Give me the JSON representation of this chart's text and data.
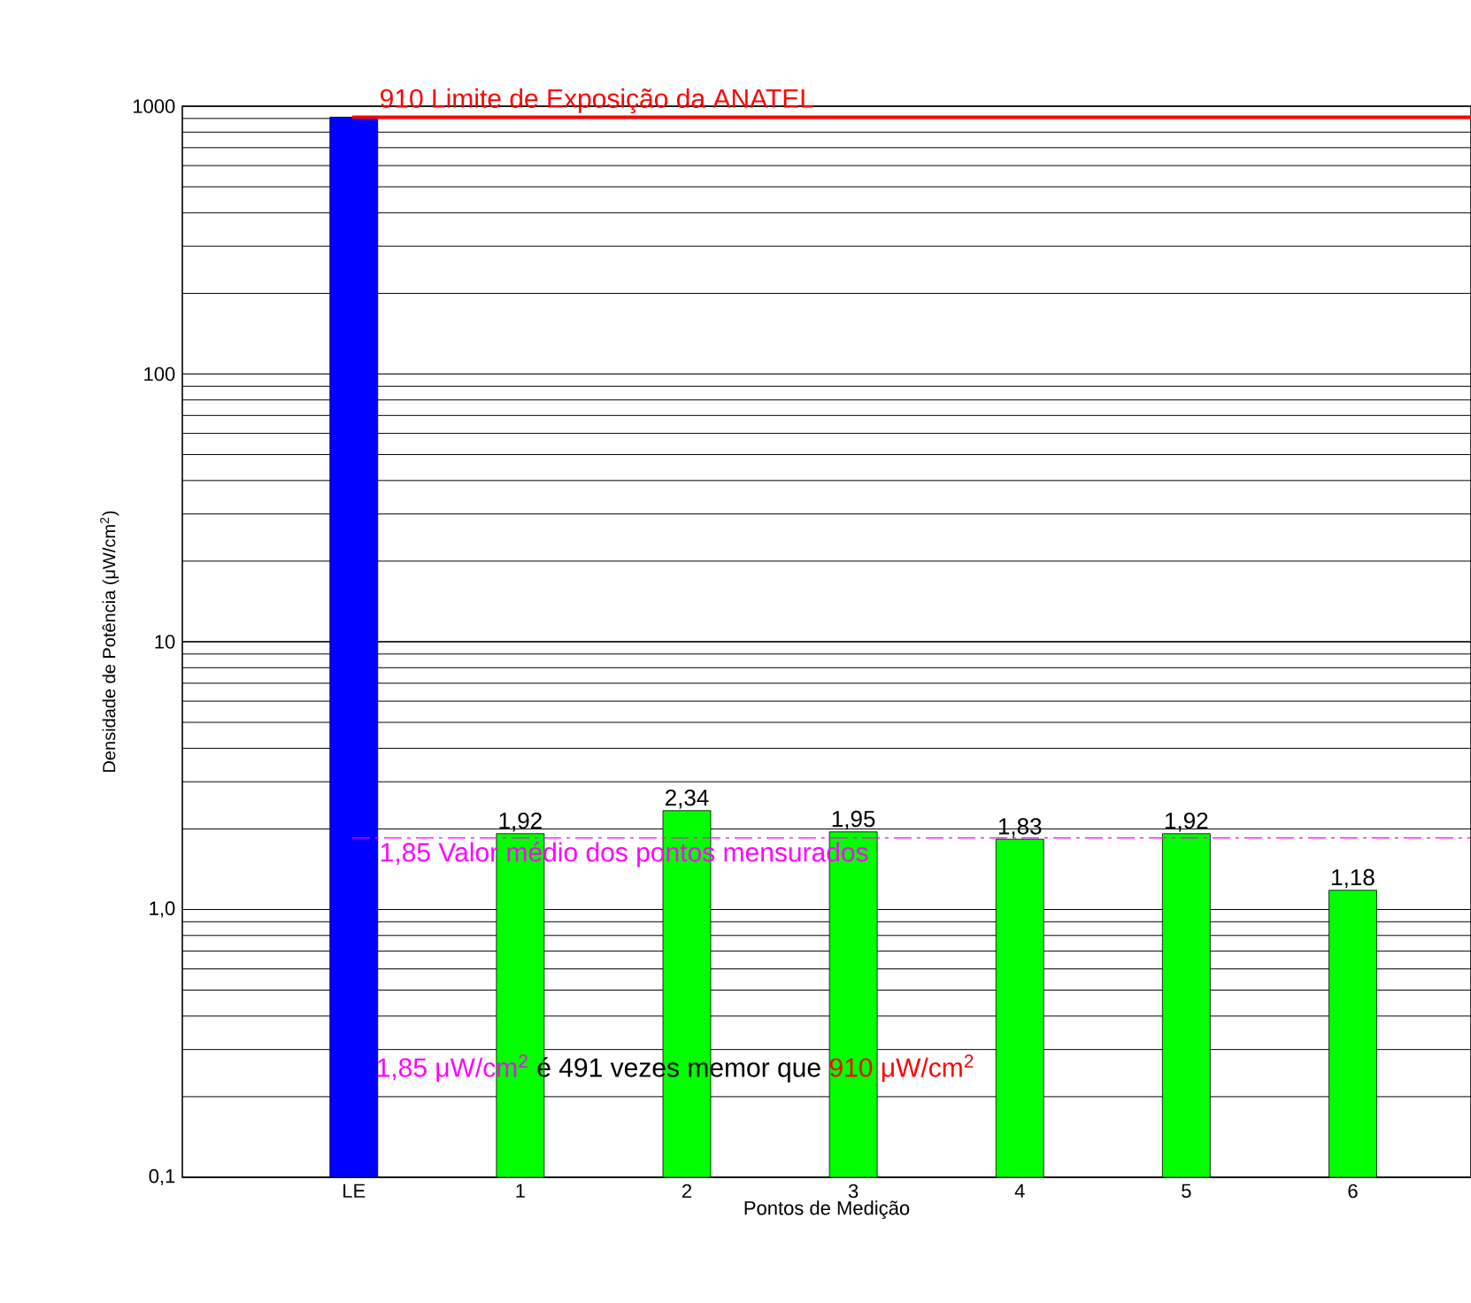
{
  "chart_data": {
    "type": "bar",
    "log": "y",
    "grid": "y",
    "categories": [
      "LE",
      "1",
      "2",
      "3",
      "4",
      "5",
      "6"
    ],
    "values": [
      910,
      1.92,
      2.34,
      1.95,
      1.83,
      1.92,
      1.18
    ],
    "colors": [
      "#0000ff",
      "#00ff00",
      "#00ff00",
      "#00ff00",
      "#00ff00",
      "#00ff00",
      "#00ff00"
    ],
    "value_labels": [
      null,
      "1,92",
      "2,34",
      "1,95",
      "1,83",
      "1,92",
      "1,18"
    ],
    "xlabel": "Pontos de Medição",
    "ylabel": "Densidade de Potência (μW/cm$^{2}$)",
    "ylim": [
      0.1,
      1000
    ],
    "yticks": [
      {
        "value": 0.1,
        "label": "0,1"
      },
      {
        "value": 1,
        "label": "1,0"
      },
      10,
      100,
      1000
    ],
    "ref_lines": [
      {
        "axis": "y",
        "value": 910,
        "label": "910 Limite de Exposição da ANATEL",
        "color": "#ff0000",
        "line_style": "solid"
      },
      {
        "axis": "y",
        "value": 1.85,
        "label": "1,85 Valor médio dos pontos mensurados",
        "color": "#ff00ff",
        "line_style": "dashed"
      }
    ],
    "annotations": [
      "1,85 μW/cm$^{2}$",
      "é 491 vezes memor que",
      "910 μW/cm$^{2}$"
    ]
  }
}
